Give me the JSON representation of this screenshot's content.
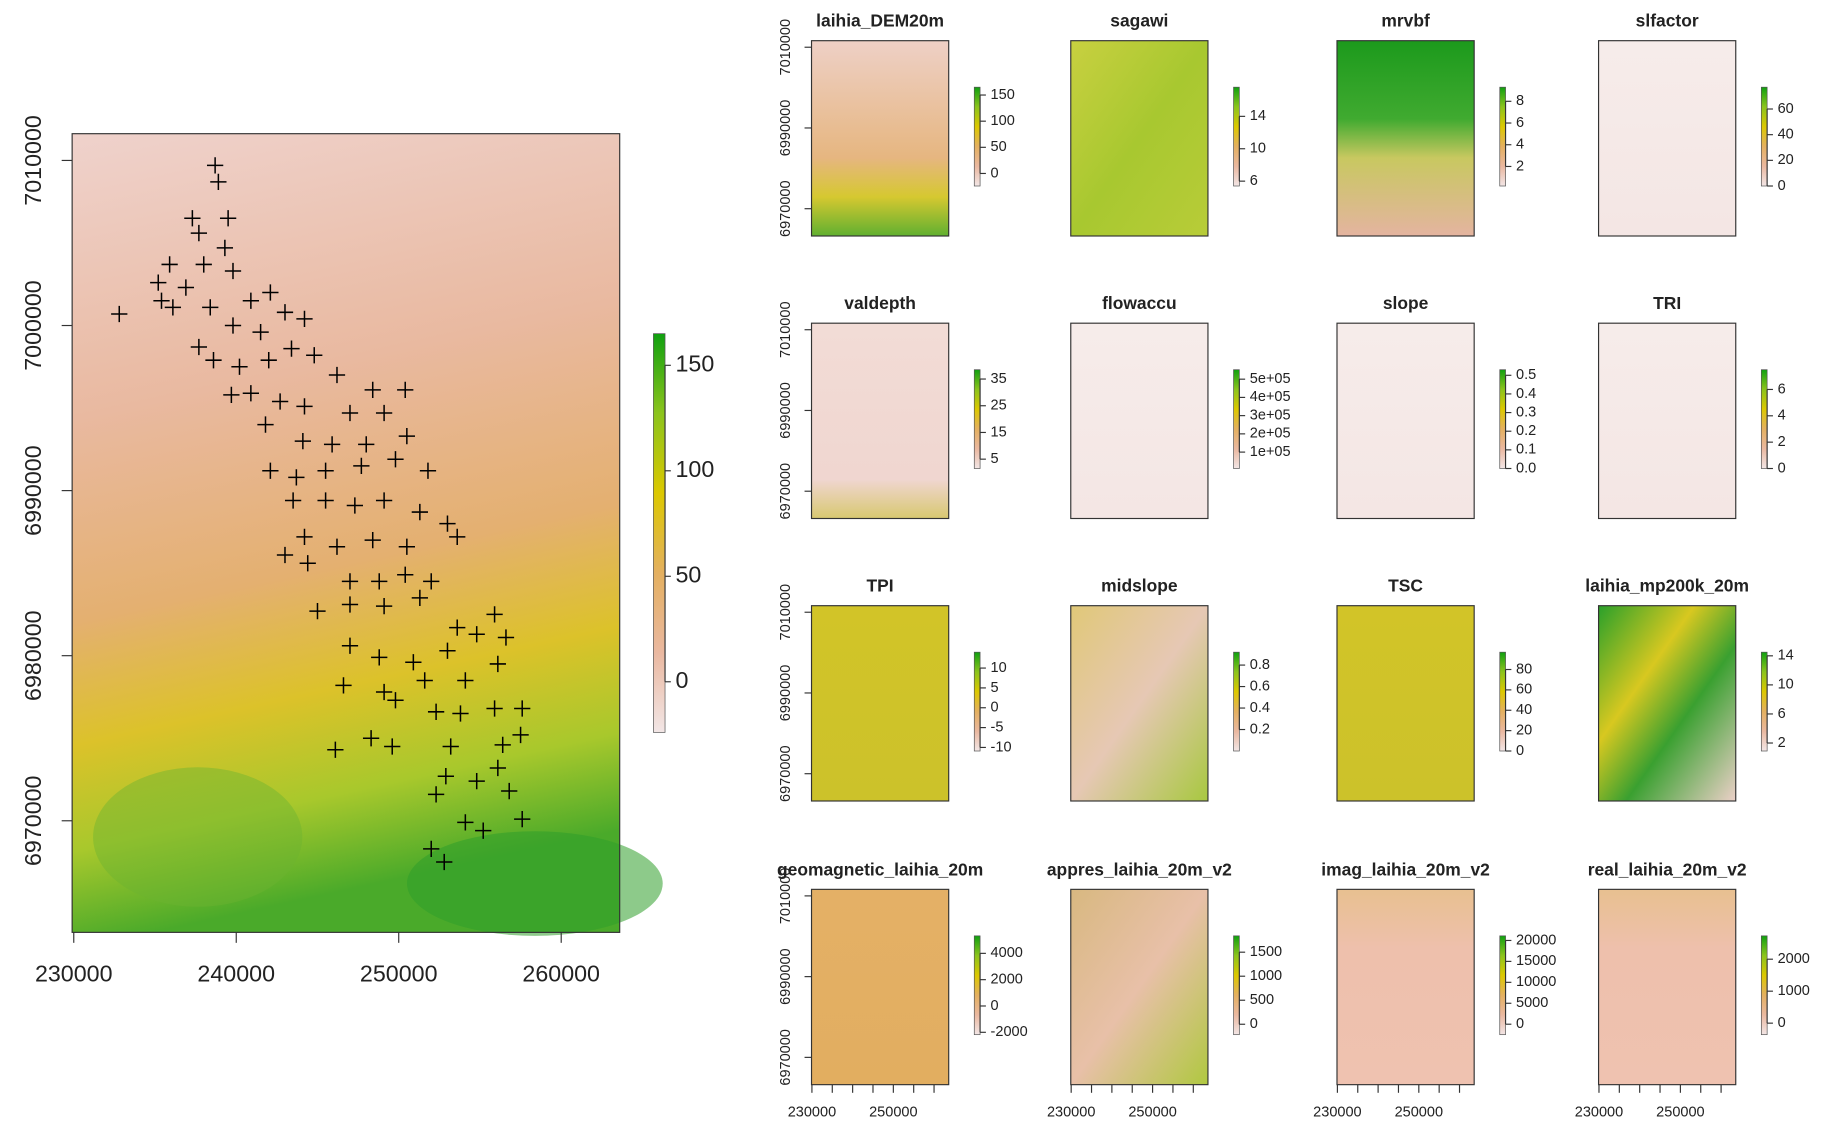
{
  "chart_data": [
    {
      "type": "scatter",
      "xlim": [
        229900,
        263600
      ],
      "ylim": [
        6963240,
        7011620
      ],
      "xticks": [
        230000,
        240000,
        250000,
        260000
      ],
      "yticks": [
        6970000,
        6980000,
        6990000,
        7000000,
        7010000
      ],
      "color": "#000000",
      "x": [
        238700,
        238900,
        237300,
        239500,
        237700,
        239300,
        235900,
        238000,
        239800,
        235200,
        236900,
        235400,
        236100,
        232800,
        238400,
        240900,
        242100,
        243000,
        244200,
        239800,
        241500,
        237700,
        238600,
        240200,
        242000,
        243400,
        244800,
        246200,
        248400,
        250400,
        239700,
        240900,
        242700,
        244200,
        247000,
        249100,
        241800,
        244100,
        245900,
        248000,
        250500,
        242100,
        243700,
        245500,
        247700,
        249800,
        251800,
        243500,
        245500,
        247300,
        249100,
        251300,
        253000,
        253600,
        244200,
        246200,
        248400,
        250500,
        243000,
        244400,
        247000,
        248800,
        250400,
        252000,
        245000,
        247000,
        249100,
        251300,
        253600,
        254800,
        256600,
        247000,
        248800,
        250900,
        253000,
        255900,
        246600,
        249100,
        251600,
        254100,
        256100,
        249800,
        252300,
        253800,
        255900,
        257600,
        246100,
        248300,
        249600,
        253200,
        256400,
        257500,
        252900,
        254800,
        256100,
        252300,
        256800,
        254100,
        255200,
        257600,
        252000,
        252800
      ],
      "y": [
        7009700,
        7008700,
        7006500,
        7006500,
        7005600,
        7004700,
        7003700,
        7003700,
        7003300,
        7002600,
        7002300,
        7001500,
        7001100,
        7000700,
        7001100,
        7001500,
        7002000,
        7000800,
        7000400,
        7000000,
        6999600,
        6998700,
        6997900,
        6997500,
        6997900,
        6998600,
        6998200,
        6997000,
        6996100,
        6996100,
        6995800,
        6995900,
        6995400,
        6995100,
        6994700,
        6994700,
        6994000,
        6993000,
        6992800,
        6992800,
        6993300,
        6991200,
        6990800,
        6991200,
        6991500,
        6991900,
        6991200,
        6989400,
        6989400,
        6989100,
        6989400,
        6988700,
        6988000,
        6987200,
        6987200,
        6986600,
        6987000,
        6986600,
        6986100,
        6985600,
        6984500,
        6984500,
        6984900,
        6984500,
        6982700,
        6983100,
        6983000,
        6983500,
        6981700,
        6981300,
        6981100,
        6980600,
        6979900,
        6979600,
        6980300,
        6982500,
        6978200,
        6977800,
        6978500,
        6978500,
        6979500,
        6977300,
        6976600,
        6976500,
        6976800,
        6976800,
        6974300,
        6975000,
        6974500,
        6974500,
        6974600,
        6975200,
        6972700,
        6972400,
        6973200,
        6971600,
        6971800,
        6969900,
        6969400,
        6970100,
        6968300,
        6967500
      ],
      "colorbar": {
        "lim": [
          -24,
          165
        ],
        "ticks": [
          150,
          100,
          50,
          0
        ]
      }
    },
    {
      "type": "raster",
      "title": "laihia_DEM20m",
      "xlim": [
        229900,
        263600
      ],
      "ylim": [
        6963240,
        7011620
      ],
      "yticks": [
        6970000,
        6990000,
        7010000
      ],
      "colorbar": {
        "lim": [
          -24,
          165
        ],
        "ticks": [
          150,
          100,
          50,
          0
        ]
      }
    },
    {
      "type": "raster",
      "title": "sagawi",
      "xlim": [
        229900,
        263600
      ],
      "ylim": [
        6963240,
        7011620
      ],
      "colorbar": {
        "lim": [
          5.4,
          17.6
        ],
        "ticks": [
          14,
          10,
          6
        ]
      }
    },
    {
      "type": "raster",
      "title": "mrvbf",
      "xlim": [
        229900,
        263600
      ],
      "ylim": [
        6963240,
        7011620
      ],
      "colorbar": {
        "lim": [
          0.2,
          9.3
        ],
        "ticks": [
          8,
          6,
          4,
          2
        ]
      }
    },
    {
      "type": "raster",
      "title": "slfactor",
      "xlim": [
        229900,
        263600
      ],
      "ylim": [
        6963240,
        7011620
      ],
      "colorbar": {
        "lim": [
          0,
          77
        ],
        "ticks": [
          60,
          40,
          20,
          0
        ]
      }
    },
    {
      "type": "raster",
      "title": "valdepth",
      "xlim": [
        229900,
        263600
      ],
      "ylim": [
        6963240,
        7011620
      ],
      "yticks": [
        6970000,
        6990000,
        7010000
      ],
      "colorbar": {
        "lim": [
          1.5,
          38.5
        ],
        "ticks": [
          35,
          25,
          15,
          5
        ]
      }
    },
    {
      "type": "raster",
      "title": "flowaccu",
      "xlim": [
        229900,
        263600
      ],
      "ylim": [
        6963240,
        7011620
      ],
      "colorbar": {
        "lim": [
          10000,
          552000
        ],
        "ticks": [
          {
            "value": 500000,
            "label": "5e+05"
          },
          {
            "value": 400000,
            "label": "4e+05"
          },
          {
            "value": 300000,
            "label": "3e+05"
          },
          {
            "value": 200000,
            "label": "2e+05"
          },
          {
            "value": 100000,
            "label": "1e+05"
          }
        ]
      }
    },
    {
      "type": "raster",
      "title": "slope",
      "xlim": [
        229900,
        263600
      ],
      "ylim": [
        6963240,
        7011620
      ],
      "colorbar": {
        "lim": [
          0,
          0.53
        ],
        "ticks": [
          0.5,
          0.4,
          0.3,
          0.2,
          0.1,
          {
            "value": 0,
            "label": "0.0"
          }
        ]
      }
    },
    {
      "type": "raster",
      "title": "TRI",
      "xlim": [
        229900,
        263600
      ],
      "ylim": [
        6963240,
        7011620
      ],
      "colorbar": {
        "lim": [
          0,
          7.5
        ],
        "ticks": [
          6,
          4,
          2,
          0
        ]
      }
    },
    {
      "type": "raster",
      "title": "TPI",
      "xlim": [
        229900,
        263600
      ],
      "ylim": [
        6963240,
        7011620
      ],
      "yticks": [
        6970000,
        6990000,
        7010000
      ],
      "colorbar": {
        "lim": [
          -10.9,
          14
        ],
        "ticks": [
          10,
          5,
          0,
          -5,
          -10
        ]
      }
    },
    {
      "type": "raster",
      "title": "midslope",
      "xlim": [
        229900,
        263600
      ],
      "ylim": [
        6963240,
        7011620
      ],
      "colorbar": {
        "lim": [
          0,
          0.92
        ],
        "ticks": [
          0.8,
          0.6,
          0.4,
          0.2
        ]
      }
    },
    {
      "type": "raster",
      "title": "TSC",
      "xlim": [
        229900,
        263600
      ],
      "ylim": [
        6963240,
        7011620
      ],
      "colorbar": {
        "lim": [
          0,
          97
        ],
        "ticks": [
          80,
          60,
          40,
          20,
          0
        ]
      }
    },
    {
      "type": "raster",
      "title": "laihia_mp200k_20m",
      "xlim": [
        229900,
        263600
      ],
      "ylim": [
        6963240,
        7011620
      ],
      "colorbar": {
        "lim": [
          0.9,
          14.5
        ],
        "ticks": [
          14,
          10,
          6,
          2
        ]
      }
    },
    {
      "type": "raster",
      "title": "geomagnetic_laihia_20m",
      "xlim": [
        229900,
        263600
      ],
      "ylim": [
        6963240,
        7011620
      ],
      "yticks": [
        6970000,
        6990000,
        7010000
      ],
      "xticks": [
        230000,
        250000
      ],
      "xticks_minor": [
        235000,
        240000,
        245000,
        255000,
        260000
      ],
      "colorbar": {
        "lim": [
          -2180,
          5330
        ],
        "ticks": [
          4000,
          2000,
          0,
          -2000
        ]
      }
    },
    {
      "type": "raster",
      "title": "appres_laihia_20m_v2",
      "xlim": [
        229900,
        263600
      ],
      "ylim": [
        6963240,
        7011620
      ],
      "xticks": [
        230000,
        250000
      ],
      "xticks_minor": [
        235000,
        240000,
        245000,
        255000,
        260000
      ],
      "colorbar": {
        "lim": [
          -217,
          1840
        ],
        "ticks": [
          1500,
          1000,
          500,
          0
        ]
      }
    },
    {
      "type": "raster",
      "title": "imag_laihia_20m_v2",
      "xlim": [
        229900,
        263600
      ],
      "ylim": [
        6963240,
        7011620
      ],
      "xticks": [
        230000,
        250000
      ],
      "xticks_minor": [
        235000,
        240000,
        245000,
        255000,
        260000
      ],
      "colorbar": {
        "lim": [
          -2500,
          21100
        ],
        "ticks": [
          20000,
          15000,
          10000,
          5000,
          0
        ]
      }
    },
    {
      "type": "raster",
      "title": "real_laihia_20m_v2",
      "xlim": [
        229900,
        263600
      ],
      "ylim": [
        6963240,
        7011620
      ],
      "xticks": [
        230000,
        250000
      ],
      "xticks_minor": [
        235000,
        240000,
        245000,
        255000,
        260000
      ],
      "colorbar": {
        "lim": [
          -360,
          2730
        ],
        "ticks": [
          2000,
          1000,
          0
        ]
      }
    }
  ]
}
